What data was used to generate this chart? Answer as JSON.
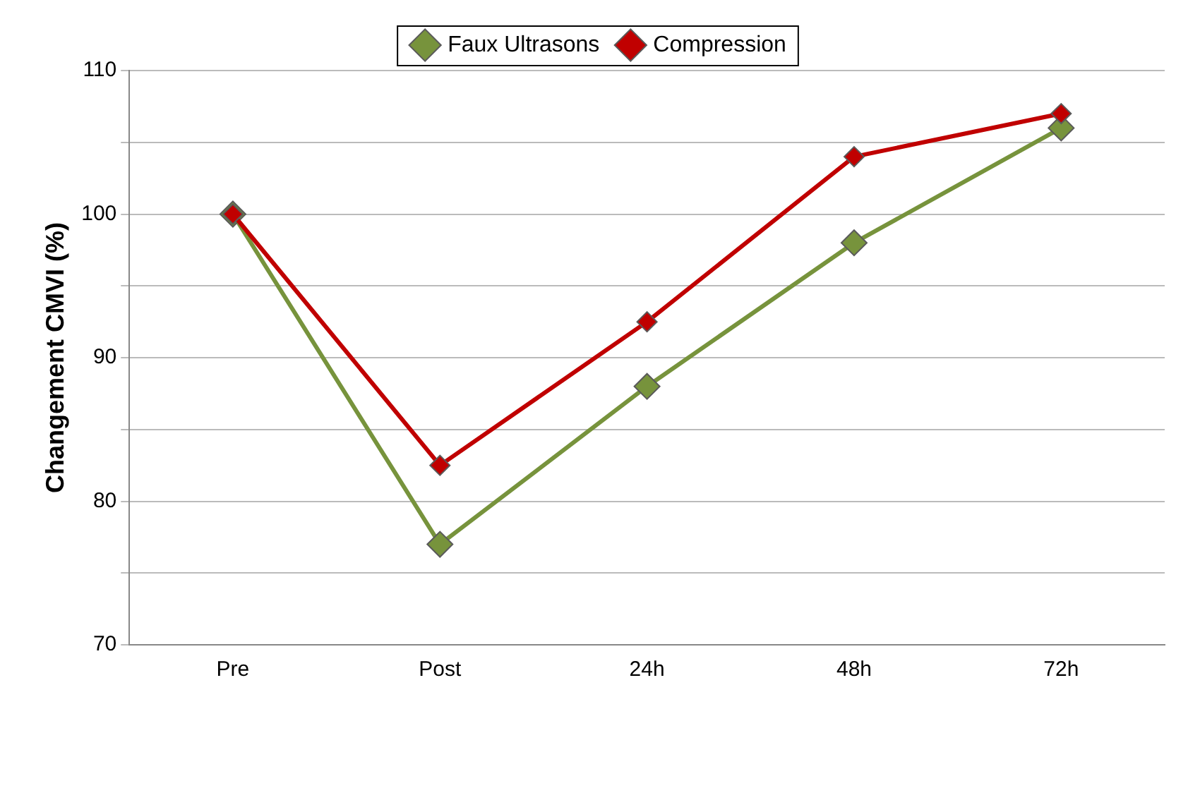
{
  "chart_data": {
    "type": "line",
    "ylabel": "Changement CMVI (%)",
    "categories": [
      "Pre",
      "Post",
      "24h",
      "48h",
      "72h"
    ],
    "series": [
      {
        "name": "Faux Ultrasons",
        "color": "#77933c",
        "values": [
          100,
          77,
          88,
          98,
          106
        ]
      },
      {
        "name": "Compression",
        "color": "#c00000",
        "values": [
          100,
          82.5,
          92.5,
          104,
          107
        ]
      }
    ],
    "ylim": [
      70,
      110
    ],
    "yticks": [
      70,
      {
        "value": 75,
        "label": null
      },
      80,
      {
        "value": 85,
        "label": null
      },
      90,
      {
        "value": 95,
        "label": null
      },
      100,
      {
        "value": 105,
        "label": null
      },
      110
    ],
    "grid": "y",
    "legend": "top",
    "marker": "diamond",
    "line_style": "solid"
  }
}
